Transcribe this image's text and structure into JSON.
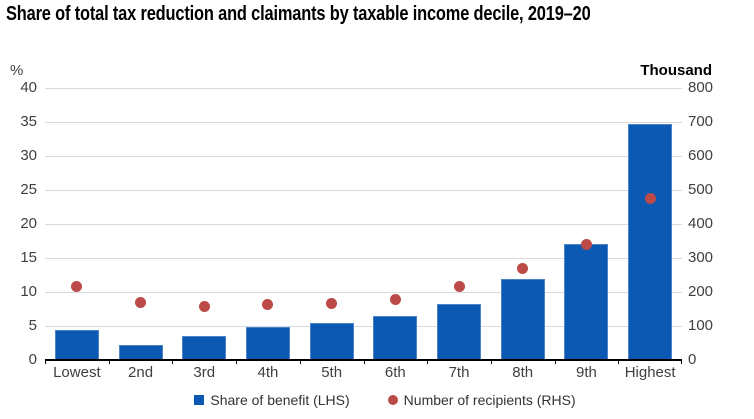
{
  "title": "Share of total tax reduction and claimants by taxable income decile, 2019–20",
  "colors": {
    "bar": "#0c59b4",
    "bar_edge": "#4a83c6",
    "dot": "#bc4a47",
    "grid": "#dadada",
    "axis_text": "#3f3f3f",
    "baseline": "#000000"
  },
  "chart_data": {
    "type": "bar",
    "title": "Share of total tax reduction and claimants by taxable income decile, 2019–20",
    "categories": [
      "Lowest",
      "2nd",
      "3rd",
      "4th",
      "5th",
      "6th",
      "7th",
      "8th",
      "9th",
      "Highest"
    ],
    "series": [
      {
        "name": "Share of benefit (LHS)",
        "type": "bar",
        "axis": "left",
        "color": "#0c59b4",
        "values": [
          4.4,
          2.2,
          3.5,
          4.8,
          5.5,
          6.4,
          8.3,
          11.9,
          17.0,
          34.7
        ]
      },
      {
        "name": "Number of recipients (RHS)",
        "type": "scatter",
        "axis": "right",
        "color": "#bc4a47",
        "values": [
          215,
          168,
          158,
          162,
          166,
          177,
          217,
          268,
          341,
          475
        ]
      }
    ],
    "left_axis": {
      "label": "%",
      "min": 0,
      "max": 40,
      "step": 5
    },
    "right_axis": {
      "label": "Thousand",
      "min": 0,
      "max": 800,
      "step": 100
    },
    "grid": true,
    "legend_position": "bottom"
  },
  "legend": {
    "lhs_label": "Share of benefit (LHS)",
    "rhs_label": "Number of recipients (RHS)"
  }
}
